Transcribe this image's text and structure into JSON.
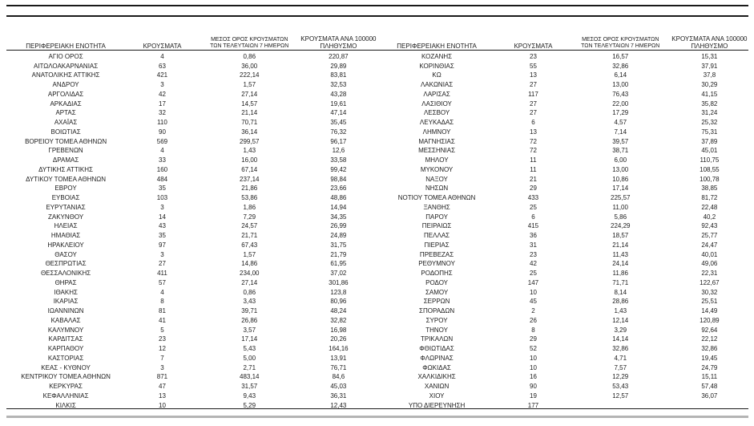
{
  "table": {
    "headers": {
      "region": "ΠΕΡΙΦΕΡΕΙΑΚΗ ΕΝΟΤΗΤΑ",
      "cases": "ΚΡΟΥΣΜΑΤΑ",
      "avg7_line1": "ΜΕΣΟΣ ΟΡΟΣ ΚΡΟΥΣΜΑΤΩΝ",
      "avg7_line2": "ΤΩΝ ΤΕΛΕΥΤΑΙΩΝ 7 ΗΜΕΡΩΝ",
      "per100k_line1": "ΚΡΟΥΣΜΑΤΑ ΑΝΑ 100000",
      "per100k_line2": "ΠΛΗΘΥΣΜΟ"
    },
    "left_rows": [
      [
        "ΑΓΙΟ ΟΡΟΣ",
        "4",
        "0,86",
        "220,87"
      ],
      [
        "ΑΙΤΩΛΟΑΚΑΡΝΑΝΙΑΣ",
        "63",
        "36,00",
        "29,89"
      ],
      [
        "ΑΝΑΤΟΛΙΚΗΣ ΑΤΤΙΚΗΣ",
        "421",
        "222,14",
        "83,81"
      ],
      [
        "ΑΝΔΡΟΥ",
        "3",
        "1,57",
        "32,53"
      ],
      [
        "ΑΡΓΟΛΙΔΑΣ",
        "42",
        "27,14",
        "43,28"
      ],
      [
        "ΑΡΚΑΔΙΑΣ",
        "17",
        "14,57",
        "19,61"
      ],
      [
        "ΑΡΤΑΣ",
        "32",
        "21,14",
        "47,14"
      ],
      [
        "ΑΧΑΪΑΣ",
        "110",
        "70,71",
        "35,45"
      ],
      [
        "ΒΟΙΩΤΙΑΣ",
        "90",
        "36,14",
        "76,32"
      ],
      [
        "ΒΟΡΕΙΟΥ ΤΟΜΕΑ ΑΘΗΝΩΝ",
        "569",
        "299,57",
        "96,17"
      ],
      [
        "ΓΡΕΒΕΝΩΝ",
        "4",
        "1,43",
        "12,6"
      ],
      [
        "ΔΡΑΜΑΣ",
        "33",
        "16,00",
        "33,58"
      ],
      [
        "ΔΥΤΙΚΗΣ ΑΤΤΙΚΗΣ",
        "160",
        "67,14",
        "99,42"
      ],
      [
        "ΔΥΤΙΚΟΥ ΤΟΜΕΑ ΑΘΗΝΩΝ",
        "484",
        "237,14",
        "98,84"
      ],
      [
        "ΕΒΡΟΥ",
        "35",
        "21,86",
        "23,66"
      ],
      [
        "ΕΥΒΟΙΑΣ",
        "103",
        "53,86",
        "48,86"
      ],
      [
        "ΕΥΡΥΤΑΝΙΑΣ",
        "3",
        "1,86",
        "14,94"
      ],
      [
        "ΖΑΚΥΝΘΟΥ",
        "14",
        "7,29",
        "34,35"
      ],
      [
        "ΗΛΕΙΑΣ",
        "43",
        "24,57",
        "26,99"
      ],
      [
        "ΗΜΑΘΙΑΣ",
        "35",
        "21,71",
        "24,89"
      ],
      [
        "ΗΡΑΚΛΕΙΟΥ",
        "97",
        "67,43",
        "31,75"
      ],
      [
        "ΘΑΣΟΥ",
        "3",
        "1,57",
        "21,79"
      ],
      [
        "ΘΕΣΠΡΩΤΙΑΣ",
        "27",
        "14,86",
        "61,95"
      ],
      [
        "ΘΕΣΣΑΛΟΝΙΚΗΣ",
        "411",
        "234,00",
        "37,02"
      ],
      [
        "ΘΗΡΑΣ",
        "57",
        "27,14",
        "301,86"
      ],
      [
        "ΙΘΑΚΗΣ",
        "4",
        "0,86",
        "123,8"
      ],
      [
        "ΙΚΑΡΙΑΣ",
        "8",
        "3,43",
        "80,96"
      ],
      [
        "ΙΩΑΝΝΙΝΩΝ",
        "81",
        "39,71",
        "48,24"
      ],
      [
        "ΚΑΒΑΛΑΣ",
        "41",
        "26,86",
        "32,82"
      ],
      [
        "ΚΑΛΥΜΝΟΥ",
        "5",
        "3,57",
        "16,98"
      ],
      [
        "ΚΑΡΔΙΤΣΑΣ",
        "23",
        "17,14",
        "20,26"
      ],
      [
        "ΚΑΡΠΑΘΟΥ",
        "12",
        "5,43",
        "164,16"
      ],
      [
        "ΚΑΣΤΟΡΙΑΣ",
        "7",
        "5,00",
        "13,91"
      ],
      [
        "ΚΕΑΣ - ΚΥΘΝΟΥ",
        "3",
        "2,71",
        "76,71"
      ],
      [
        "ΚΕΝΤΡΙΚΟΥ ΤΟΜΕΑ ΑΘΗΝΩΝ",
        "871",
        "483,14",
        "84,6"
      ],
      [
        "ΚΕΡΚΥΡΑΣ",
        "47",
        "31,57",
        "45,03"
      ],
      [
        "ΚΕΦΑΛΛΗΝΙΑΣ",
        "13",
        "9,43",
        "36,31"
      ],
      [
        "ΚΙΛΚΙΣ",
        "10",
        "5,29",
        "12,43"
      ]
    ],
    "right_rows": [
      [
        "ΚΟΖΑΝΗΣ",
        "23",
        "16,57",
        "15,31"
      ],
      [
        "ΚΟΡΙΝΘΙΑΣ",
        "55",
        "32,86",
        "37,91"
      ],
      [
        "ΚΩ",
        "13",
        "6,14",
        "37,8"
      ],
      [
        "ΛΑΚΩΝΙΑΣ",
        "27",
        "13,00",
        "30,29"
      ],
      [
        "ΛΑΡΙΣΑΣ",
        "117",
        "76,43",
        "41,15"
      ],
      [
        "ΛΑΣΙΘΙΟΥ",
        "27",
        "22,00",
        "35,82"
      ],
      [
        "ΛΕΣΒΟΥ",
        "27",
        "17,29",
        "31,24"
      ],
      [
        "ΛΕΥΚΑΔΑΣ",
        "6",
        "4,57",
        "25,32"
      ],
      [
        "ΛΗΜΝΟΥ",
        "13",
        "7,14",
        "75,31"
      ],
      [
        "ΜΑΓΝΗΣΙΑΣ",
        "72",
        "39,57",
        "37,89"
      ],
      [
        "ΜΕΣΣΗΝΙΑΣ",
        "72",
        "38,71",
        "45,01"
      ],
      [
        "ΜΗΛΟΥ",
        "11",
        "6,00",
        "110,75"
      ],
      [
        "ΜΥΚΟΝΟΥ",
        "11",
        "13,00",
        "108,55"
      ],
      [
        "ΝΑΞΟΥ",
        "21",
        "10,86",
        "100,78"
      ],
      [
        "ΝΗΣΩΝ",
        "29",
        "17,14",
        "38,85"
      ],
      [
        "ΝΟΤΙΟΥ ΤΟΜΕΑ ΑΘΗΝΩΝ",
        "433",
        "225,57",
        "81,72"
      ],
      [
        "ΞΑΝΘΗΣ",
        "25",
        "11,00",
        "22,48"
      ],
      [
        "ΠΑΡΟΥ",
        "6",
        "5,86",
        "40,2"
      ],
      [
        "ΠΕΙΡΑΙΩΣ",
        "415",
        "224,29",
        "92,43"
      ],
      [
        "ΠΕΛΛΑΣ",
        "36",
        "18,57",
        "25,77"
      ],
      [
        "ΠΙΕΡΙΑΣ",
        "31",
        "21,14",
        "24,47"
      ],
      [
        "ΠΡΕΒΕΖΑΣ",
        "23",
        "11,43",
        "40,01"
      ],
      [
        "ΡΕΘΥΜΝΟΥ",
        "42",
        "24,14",
        "49,06"
      ],
      [
        "ΡΟΔΟΠΗΣ",
        "25",
        "11,86",
        "22,31"
      ],
      [
        "ΡΟΔΟΥ",
        "147",
        "71,71",
        "122,67"
      ],
      [
        "ΣΑΜΟΥ",
        "10",
        "8,14",
        "30,32"
      ],
      [
        "ΣΕΡΡΩΝ",
        "45",
        "28,86",
        "25,51"
      ],
      [
        "ΣΠΟΡΑΔΩΝ",
        "2",
        "1,43",
        "14,49"
      ],
      [
        "ΣΥΡΟΥ",
        "26",
        "12,14",
        "120,89"
      ],
      [
        "ΤΗΝΟΥ",
        "8",
        "3,29",
        "92,64"
      ],
      [
        "ΤΡΙΚΑΛΩΝ",
        "29",
        "14,14",
        "22,12"
      ],
      [
        "ΦΘΙΩΤΙΔΑΣ",
        "52",
        "32,86",
        "32,86"
      ],
      [
        "ΦΛΩΡΙΝΑΣ",
        "10",
        "4,71",
        "19,45"
      ],
      [
        "ΦΩΚΙΔΑΣ",
        "10",
        "7,57",
        "24,79"
      ],
      [
        "ΧΑΛΚΙΔΙΚΗΣ",
        "16",
        "12,29",
        "15,11"
      ],
      [
        "ΧΑΝΙΩΝ",
        "90",
        "53,43",
        "57,48"
      ],
      [
        "ΧΙΟΥ",
        "19",
        "12,57",
        "36,07"
      ],
      [
        "ΥΠΟ ΔΙΕΡΕΥΝΗΣΗ",
        "177",
        "",
        ""
      ]
    ]
  }
}
